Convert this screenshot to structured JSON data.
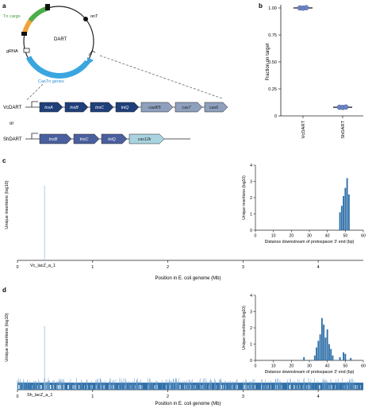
{
  "panels": {
    "a": {
      "letter": "a",
      "plasmid": {
        "title": "DART",
        "cargo_label": "Tn cargo",
        "ont_label": "onT",
        "grna_label": "gRNA",
        "castn_label": "CasTn genes"
      },
      "operons": [
        {
          "name": "VcDART",
          "genes": [
            "tnsA",
            "tnsB",
            "tnsC",
            "tniQ",
            "cas8/5",
            "cas7",
            "cas6"
          ],
          "types": [
            "tn",
            "tn",
            "tn",
            "tn",
            "cas",
            "cas",
            "cas"
          ]
        },
        {
          "name": "ShDART",
          "genes": [
            "tnsB",
            "tnsC",
            "tniQ",
            "cas12k"
          ],
          "types": [
            "tn2",
            "tn2",
            "tn2",
            "cas2"
          ]
        }
      ],
      "or_label": "or"
    },
    "b": {
      "letter": "b"
    },
    "c": {
      "letter": "c"
    },
    "d": {
      "letter": "d"
    }
  },
  "chart_data": [
    {
      "id": "b",
      "type": "scatter",
      "categories": [
        "VcDART",
        "ShDART"
      ],
      "points": [
        [
          1.0,
          0.998,
          1.002
        ],
        [
          0.08,
          0.078,
          0.082
        ]
      ],
      "means": [
        1.0,
        0.08
      ],
      "ylabel": "Fraction on target",
      "ylim": [
        0,
        1
      ],
      "yticks": [
        "0",
        "0.25",
        "0.50",
        "0.75",
        "1.00"
      ],
      "color": "#6f86c8"
    },
    {
      "id": "c",
      "type": "bar",
      "ylabel": "Unique insertions (log10)",
      "xlabel": "Position in E. coli genome (Mb)",
      "xlim": [
        0,
        4.6
      ],
      "ylim": [
        0,
        4
      ],
      "xticks": [
        "0",
        "1",
        "2",
        "3",
        "4"
      ],
      "yticks": [
        "0",
        "1",
        "2",
        "3",
        "4"
      ],
      "peaks": [
        {
          "x": 0.36,
          "y": 3.2
        }
      ],
      "site_label": "Vc_lacZ_a_1",
      "color": "#aecbe6",
      "inset": {
        "xlabel": "Distance downstream of protospacer 3′ end (bp)",
        "ylabel": "Unique insertions (log10)",
        "xlim": [
          0,
          60
        ],
        "ylim": [
          0,
          4
        ],
        "xticks": [
          "0",
          "10",
          "20",
          "30",
          "40",
          "50",
          "60"
        ],
        "yticks": [
          "0",
          "1",
          "2",
          "3",
          "4"
        ],
        "bars": [
          [
            47,
            1.1
          ],
          [
            48,
            1.5
          ],
          [
            49,
            2.1
          ],
          [
            50,
            2.6
          ],
          [
            51,
            3.2
          ],
          [
            52,
            2.2
          ]
        ],
        "color": "#2f6fa8"
      }
    },
    {
      "id": "d",
      "type": "bar",
      "ylabel": "Unique insertions (log10)",
      "xlabel": "Position in E. coli genome (Mb)",
      "xlim": [
        0,
        4.6
      ],
      "ylim": [
        0,
        4
      ],
      "xticks": [
        "0",
        "1",
        "2",
        "3",
        "4"
      ],
      "yticks": [
        "0",
        "1",
        "2",
        "3",
        "4"
      ],
      "peaks": [
        {
          "x": 0.36,
          "y": 2.7
        }
      ],
      "site_label": "Sh_lacZ_a_1",
      "color": "#2f6fa8",
      "background_max": 0.5,
      "inset": {
        "xlabel": "Distance downstream of protospacer 3′ end (bp)",
        "ylabel": "Unique insertions (log10)",
        "xlim": [
          0,
          60
        ],
        "ylim": [
          0,
          4
        ],
        "xticks": [
          "0",
          "10",
          "20",
          "30",
          "40",
          "50",
          "60"
        ],
        "yticks": [
          "0",
          "1",
          "2",
          "3",
          "4"
        ],
        "bars": [
          [
            27,
            0.2
          ],
          [
            33,
            0.3
          ],
          [
            34,
            0.8
          ],
          [
            35,
            1.2
          ],
          [
            36,
            1.6
          ],
          [
            37,
            2.6
          ],
          [
            38,
            2.2
          ],
          [
            39,
            1.4
          ],
          [
            40,
            1.9
          ],
          [
            41,
            1.0
          ],
          [
            42,
            0.7
          ],
          [
            43,
            0.3
          ],
          [
            47,
            0.2
          ],
          [
            49,
            0.5
          ],
          [
            50,
            0.4
          ],
          [
            53,
            0.15
          ]
        ],
        "color": "#2f6fa8"
      }
    }
  ]
}
